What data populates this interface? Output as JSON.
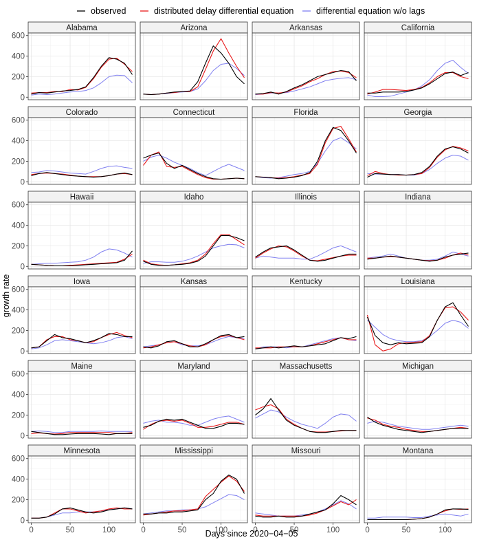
{
  "chart_data": {
    "type": "line",
    "layout": "facet-grid",
    "columns": 4,
    "rows": 6,
    "xlabel": "Days since 2020−04−05",
    "ylabel": "growth rate",
    "xlim": [
      -4,
      134
    ],
    "ylim": [
      -25,
      625
    ],
    "xticks": [
      0,
      50,
      100
    ],
    "yticks": [
      0,
      200,
      400,
      600
    ],
    "x": [
      0,
      10,
      20,
      30,
      40,
      50,
      60,
      70,
      80,
      90,
      100,
      110,
      120,
      130
    ],
    "legend": {
      "position": "top",
      "entries": [
        {
          "key": "obs",
          "label": "observed",
          "color": "#000000"
        },
        {
          "key": "dde",
          "label": "distributed delay differential equation",
          "color": "#e8191a"
        },
        {
          "key": "nolag",
          "label": "differential equation w/o lags",
          "color": "#8080f0"
        }
      ]
    },
    "panels": [
      {
        "state": "Alabama",
        "obs": [
          30,
          45,
          40,
          50,
          60,
          65,
          75,
          100,
          190,
          300,
          385,
          370,
          330,
          220
        ],
        "dde": [
          40,
          45,
          45,
          55,
          55,
          75,
          70,
          95,
          180,
          290,
          370,
          380,
          320,
          250
        ],
        "nolag": [
          20,
          30,
          25,
          30,
          40,
          50,
          55,
          65,
          90,
          140,
          200,
          215,
          210,
          140
        ]
      },
      {
        "state": "Arizona",
        "obs": [
          30,
          25,
          30,
          40,
          50,
          55,
          60,
          150,
          330,
          500,
          430,
          330,
          200,
          130
        ],
        "dde": [
          30,
          25,
          30,
          40,
          45,
          55,
          55,
          100,
          270,
          450,
          570,
          430,
          300,
          190
        ],
        "nolag": [
          30,
          25,
          30,
          35,
          45,
          50,
          55,
          80,
          160,
          260,
          320,
          330,
          280,
          210
        ]
      },
      {
        "state": "Arkansas",
        "obs": [
          30,
          35,
          50,
          30,
          55,
          90,
          120,
          160,
          200,
          220,
          240,
          260,
          250,
          160
        ],
        "dde": [
          30,
          30,
          45,
          40,
          50,
          80,
          110,
          150,
          180,
          220,
          250,
          255,
          240,
          190
        ],
        "nolag": [
          25,
          30,
          40,
          40,
          45,
          60,
          80,
          100,
          130,
          160,
          175,
          185,
          190,
          170
        ]
      },
      {
        "state": "California",
        "obs": [
          40,
          40,
          50,
          50,
          50,
          55,
          70,
          90,
          130,
          180,
          230,
          245,
          210,
          240
        ],
        "dde": [
          30,
          50,
          75,
          75,
          70,
          65,
          75,
          95,
          140,
          200,
          240,
          240,
          200,
          180
        ],
        "nolag": [
          20,
          5,
          5,
          10,
          30,
          50,
          70,
          110,
          170,
          260,
          330,
          360,
          290,
          230
        ]
      },
      {
        "state": "Colorado",
        "obs": [
          60,
          80,
          90,
          80,
          70,
          60,
          55,
          50,
          45,
          50,
          60,
          75,
          85,
          70
        ],
        "dde": [
          70,
          80,
          85,
          80,
          75,
          65,
          55,
          50,
          50,
          50,
          60,
          75,
          80,
          70
        ],
        "nolag": [
          90,
          95,
          110,
          105,
          95,
          85,
          80,
          75,
          100,
          130,
          150,
          155,
          140,
          130
        ]
      },
      {
        "state": "Connecticut",
        "obs": [
          230,
          260,
          280,
          180,
          130,
          160,
          120,
          80,
          50,
          30,
          25,
          30,
          35,
          30
        ],
        "dde": [
          160,
          260,
          290,
          150,
          140,
          150,
          110,
          70,
          40,
          25,
          25,
          30,
          35,
          30
        ],
        "nolag": [
          200,
          240,
          260,
          230,
          190,
          160,
          130,
          90,
          60,
          100,
          140,
          170,
          140,
          110
        ]
      },
      {
        "state": "Florida",
        "obs": [
          50,
          45,
          40,
          30,
          35,
          45,
          60,
          90,
          200,
          400,
          530,
          500,
          400,
          280
        ],
        "dde": [
          50,
          45,
          40,
          35,
          40,
          50,
          65,
          80,
          170,
          380,
          520,
          540,
          420,
          290
        ],
        "nolag": [
          50,
          40,
          35,
          40,
          55,
          70,
          80,
          100,
          180,
          300,
          400,
          430,
          380,
          320
        ]
      },
      {
        "state": "Georgia",
        "obs": [
          45,
          80,
          75,
          70,
          70,
          65,
          70,
          90,
          150,
          250,
          320,
          340,
          320,
          280
        ],
        "dde": [
          60,
          100,
          80,
          70,
          65,
          65,
          70,
          80,
          140,
          240,
          310,
          345,
          330,
          300
        ],
        "nolag": [
          80,
          75,
          75,
          70,
          70,
          65,
          65,
          80,
          120,
          180,
          230,
          260,
          250,
          210
        ]
      },
      {
        "state": "Hawaii",
        "obs": [
          20,
          15,
          10,
          5,
          5,
          5,
          10,
          15,
          20,
          25,
          30,
          35,
          60,
          150
        ],
        "dde": [
          20,
          15,
          10,
          5,
          5,
          10,
          15,
          20,
          25,
          30,
          35,
          40,
          70,
          120
        ],
        "nolag": [
          20,
          25,
          30,
          30,
          35,
          40,
          45,
          60,
          90,
          140,
          170,
          160,
          130,
          90
        ]
      },
      {
        "state": "Idaho",
        "obs": [
          50,
          20,
          10,
          10,
          15,
          20,
          30,
          50,
          100,
          200,
          300,
          300,
          280,
          250
        ],
        "dde": [
          60,
          25,
          15,
          10,
          15,
          25,
          35,
          60,
          120,
          220,
          310,
          310,
          260,
          210
        ],
        "nolag": [
          30,
          45,
          45,
          40,
          40,
          50,
          70,
          100,
          140,
          180,
          200,
          215,
          210,
          180
        ]
      },
      {
        "state": "Illinois",
        "obs": [
          90,
          140,
          180,
          190,
          200,
          160,
          110,
          60,
          50,
          60,
          80,
          100,
          120,
          120
        ],
        "dde": [
          80,
          130,
          170,
          200,
          190,
          150,
          100,
          60,
          55,
          70,
          85,
          100,
          110,
          110
        ],
        "nolag": [
          80,
          100,
          90,
          80,
          80,
          80,
          70,
          70,
          100,
          140,
          180,
          200,
          170,
          140
        ]
      },
      {
        "state": "Indiana",
        "obs": [
          70,
          80,
          90,
          100,
          90,
          80,
          70,
          60,
          50,
          60,
          90,
          110,
          120,
          130
        ],
        "dde": [
          80,
          80,
          90,
          95,
          90,
          80,
          70,
          60,
          55,
          60,
          80,
          110,
          130,
          110
        ],
        "nolag": [
          80,
          90,
          100,
          120,
          100,
          80,
          70,
          60,
          60,
          70,
          100,
          140,
          120,
          100
        ]
      },
      {
        "state": "Iowa",
        "obs": [
          30,
          40,
          100,
          160,
          130,
          120,
          100,
          80,
          100,
          130,
          170,
          160,
          140,
          140
        ],
        "dde": [
          30,
          40,
          110,
          140,
          140,
          110,
          100,
          80,
          90,
          130,
          160,
          180,
          150,
          130
        ],
        "nolag": [
          20,
          30,
          60,
          100,
          110,
          100,
          90,
          80,
          70,
          80,
          100,
          130,
          140,
          120
        ]
      },
      {
        "state": "Kansas",
        "obs": [
          40,
          30,
          50,
          90,
          100,
          70,
          40,
          40,
          70,
          110,
          150,
          160,
          130,
          140
        ],
        "dde": [
          30,
          40,
          60,
          80,
          90,
          70,
          50,
          40,
          60,
          110,
          140,
          150,
          130,
          110
        ],
        "nolag": [
          40,
          50,
          60,
          80,
          90,
          60,
          50,
          50,
          60,
          90,
          120,
          140,
          130,
          120
        ]
      },
      {
        "state": "Kentucky",
        "obs": [
          20,
          30,
          40,
          30,
          40,
          50,
          40,
          50,
          60,
          70,
          100,
          130,
          120,
          140
        ],
        "dde": [
          30,
          30,
          30,
          40,
          40,
          40,
          40,
          50,
          70,
          90,
          110,
          130,
          110,
          110
        ],
        "nolag": [
          20,
          40,
          40,
          40,
          30,
          40,
          40,
          60,
          80,
          100,
          120,
          130,
          110,
          100
        ]
      },
      {
        "state": "Louisiana",
        "obs": [
          330,
          150,
          80,
          60,
          80,
          70,
          75,
          80,
          140,
          300,
          430,
          470,
          350,
          240
        ],
        "dde": [
          350,
          60,
          0,
          20,
          70,
          80,
          85,
          90,
          150,
          300,
          420,
          430,
          380,
          300
        ],
        "nolag": [
          300,
          230,
          160,
          120,
          100,
          90,
          90,
          100,
          140,
          200,
          270,
          300,
          280,
          220
        ]
      },
      {
        "state": "Maine",
        "obs": [
          40,
          30,
          20,
          10,
          10,
          15,
          20,
          20,
          20,
          15,
          10,
          20,
          20,
          20
        ],
        "dde": [
          20,
          25,
          20,
          15,
          20,
          30,
          30,
          30,
          30,
          30,
          30,
          20,
          20,
          30
        ],
        "nolag": [
          40,
          45,
          40,
          30,
          30,
          40,
          40,
          40,
          40,
          45,
          40,
          40,
          40,
          40
        ]
      },
      {
        "state": "Maryland",
        "obs": [
          80,
          100,
          140,
          160,
          150,
          160,
          130,
          100,
          70,
          70,
          90,
          120,
          120,
          110
        ],
        "dde": [
          60,
          110,
          140,
          150,
          140,
          150,
          120,
          80,
          80,
          90,
          110,
          130,
          130,
          110
        ],
        "nolag": [
          120,
          140,
          150,
          130,
          130,
          120,
          100,
          100,
          130,
          160,
          180,
          190,
          160,
          130
        ]
      },
      {
        "state": "Massachusetts",
        "obs": [
          200,
          260,
          360,
          250,
          150,
          100,
          70,
          40,
          30,
          30,
          40,
          50,
          50,
          50
        ],
        "dde": [
          250,
          280,
          300,
          260,
          160,
          110,
          70,
          40,
          35,
          35,
          40,
          45,
          50,
          50
        ],
        "nolag": [
          170,
          210,
          250,
          230,
          180,
          140,
          110,
          90,
          70,
          120,
          180,
          210,
          200,
          140
        ]
      },
      {
        "state": "Michigan",
        "obs": [
          180,
          130,
          100,
          80,
          60,
          50,
          40,
          30,
          40,
          50,
          60,
          70,
          70,
          70
        ],
        "dde": [
          170,
          150,
          110,
          90,
          80,
          60,
          50,
          40,
          40,
          50,
          60,
          70,
          80,
          70
        ],
        "nolag": [
          120,
          140,
          130,
          110,
          90,
          80,
          70,
          60,
          60,
          70,
          80,
          90,
          100,
          90
        ]
      },
      {
        "state": "Minnesota",
        "obs": [
          20,
          20,
          30,
          60,
          110,
          120,
          100,
          80,
          70,
          80,
          100,
          110,
          120,
          110
        ],
        "dde": [
          20,
          20,
          30,
          70,
          110,
          110,
          90,
          70,
          80,
          90,
          110,
          120,
          110,
          110
        ],
        "nolag": [
          20,
          20,
          30,
          50,
          70,
          70,
          80,
          80,
          80,
          90,
          100,
          110,
          120,
          110
        ]
      },
      {
        "state": "Mississippi",
        "obs": [
          60,
          60,
          70,
          70,
          80,
          80,
          90,
          100,
          200,
          260,
          380,
          440,
          400,
          260
        ],
        "dde": [
          50,
          60,
          70,
          80,
          90,
          90,
          100,
          110,
          230,
          300,
          370,
          430,
          380,
          280
        ],
        "nolag": [
          60,
          70,
          80,
          90,
          90,
          100,
          100,
          110,
          130,
          170,
          210,
          250,
          240,
          200
        ]
      },
      {
        "state": "Missouri",
        "obs": [
          40,
          30,
          30,
          40,
          30,
          30,
          40,
          60,
          80,
          100,
          160,
          240,
          200,
          150
        ],
        "dde": [
          50,
          40,
          40,
          40,
          40,
          40,
          40,
          50,
          70,
          100,
          140,
          180,
          150,
          200
        ],
        "nolag": [
          70,
          60,
          50,
          40,
          40,
          40,
          50,
          60,
          80,
          110,
          150,
          190,
          160,
          110
        ]
      },
      {
        "state": "Montana",
        "obs": [
          5,
          5,
          5,
          5,
          5,
          5,
          10,
          15,
          30,
          60,
          100,
          110,
          110,
          105
        ],
        "dde": [
          5,
          5,
          5,
          5,
          5,
          5,
          10,
          15,
          30,
          60,
          90,
          110,
          105,
          110
        ],
        "nolag": [
          20,
          20,
          30,
          30,
          30,
          30,
          25,
          25,
          40,
          50,
          60,
          50,
          40,
          60
        ]
      }
    ]
  }
}
